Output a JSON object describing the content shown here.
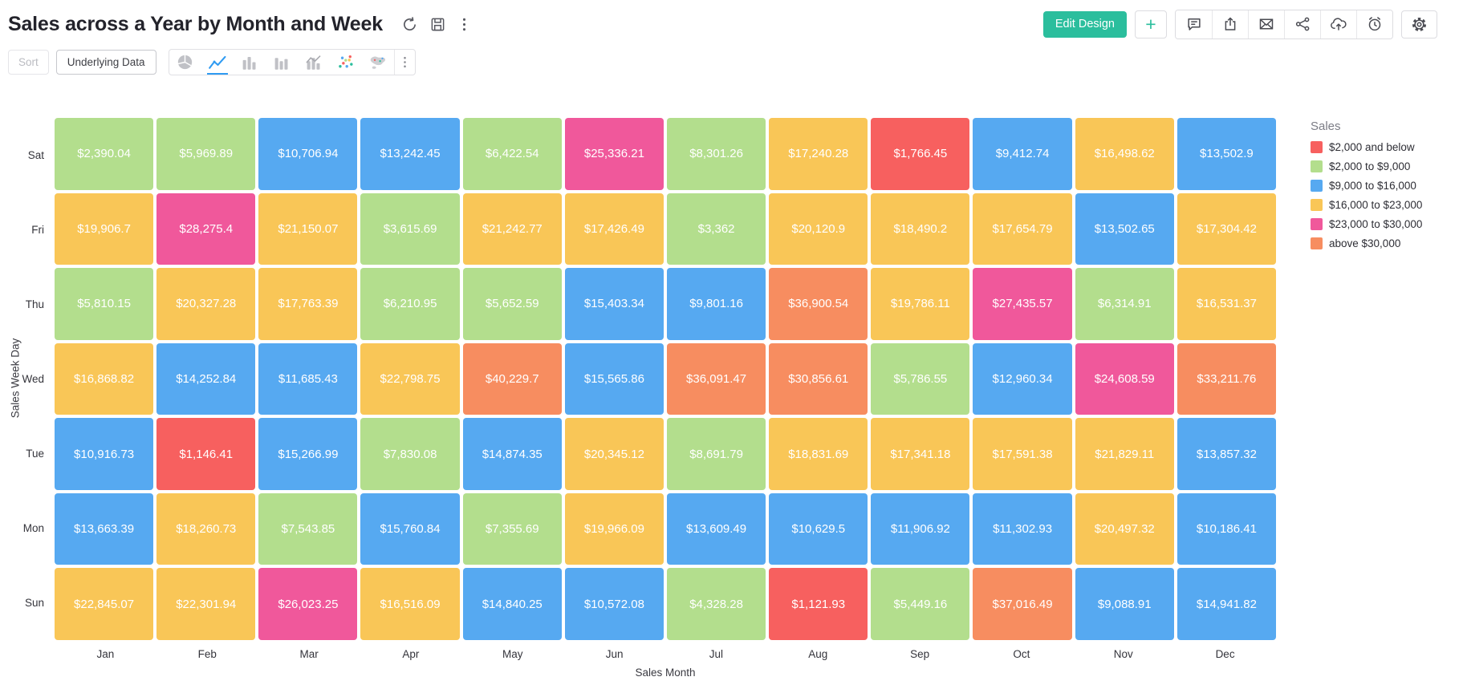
{
  "header": {
    "title": "Sales across a Year by Month and Week",
    "edit_design_label": "Edit Design",
    "add_label": "+"
  },
  "toolbar": {
    "sort_label": "Sort",
    "underlying_data_label": "Underlying Data"
  },
  "colors": {
    "accent_teal": "#2bbe9d",
    "active_chart_icon_blue": "#2f9bf2"
  },
  "chart_data": {
    "type": "heatmap",
    "title": "Sales across a Year by Month and Week",
    "xlabel": "Sales Month",
    "ylabel": "Sales Week Day",
    "columns": [
      "Jan",
      "Feb",
      "Mar",
      "Apr",
      "May",
      "Jun",
      "Jul",
      "Aug",
      "Sep",
      "Oct",
      "Nov",
      "Dec"
    ],
    "rows": [
      "Sat",
      "Fri",
      "Thu",
      "Wed",
      "Tue",
      "Mon",
      "Sun"
    ],
    "values": [
      [
        2390.04,
        5969.89,
        10706.94,
        13242.45,
        6422.54,
        25336.21,
        8301.26,
        17240.28,
        1766.45,
        9412.74,
        16498.62,
        13502.9
      ],
      [
        19906.7,
        28275.4,
        21150.07,
        3615.69,
        21242.77,
        17426.49,
        3362,
        20120.9,
        18490.2,
        17654.79,
        13502.65,
        17304.42
      ],
      [
        5810.15,
        20327.28,
        17763.39,
        6210.95,
        5652.59,
        15403.34,
        9801.16,
        36900.54,
        19786.11,
        27435.57,
        6314.91,
        16531.37
      ],
      [
        16868.82,
        14252.84,
        11685.43,
        22798.75,
        40229.7,
        15565.86,
        36091.47,
        30856.61,
        5786.55,
        12960.34,
        24608.59,
        33211.76
      ],
      [
        10916.73,
        1146.41,
        15266.99,
        7830.08,
        14874.35,
        20345.12,
        8691.79,
        18831.69,
        17341.18,
        17591.38,
        21829.11,
        13857.32
      ],
      [
        13663.39,
        18260.73,
        7543.85,
        15760.84,
        7355.69,
        19966.09,
        13609.49,
        10629.5,
        11906.92,
        11302.93,
        20497.32,
        10186.41
      ],
      [
        22845.07,
        22301.94,
        26023.25,
        16516.09,
        14840.25,
        10572.08,
        4328.28,
        1121.93,
        5449.16,
        37016.49,
        9088.91,
        14941.82
      ]
    ],
    "labels": [
      [
        "$2,390.04",
        "$5,969.89",
        "$10,706.94",
        "$13,242.45",
        "$6,422.54",
        "$25,336.21",
        "$8,301.26",
        "$17,240.28",
        "$1,766.45",
        "$9,412.74",
        "$16,498.62",
        "$13,502.9"
      ],
      [
        "$19,906.7",
        "$28,275.4",
        "$21,150.07",
        "$3,615.69",
        "$21,242.77",
        "$17,426.49",
        "$3,362",
        "$20,120.9",
        "$18,490.2",
        "$17,654.79",
        "$13,502.65",
        "$17,304.42"
      ],
      [
        "$5,810.15",
        "$20,327.28",
        "$17,763.39",
        "$6,210.95",
        "$5,652.59",
        "$15,403.34",
        "$9,801.16",
        "$36,900.54",
        "$19,786.11",
        "$27,435.57",
        "$6,314.91",
        "$16,531.37"
      ],
      [
        "$16,868.82",
        "$14,252.84",
        "$11,685.43",
        "$22,798.75",
        "$40,229.7",
        "$15,565.86",
        "$36,091.47",
        "$30,856.61",
        "$5,786.55",
        "$12,960.34",
        "$24,608.59",
        "$33,211.76"
      ],
      [
        "$10,916.73",
        "$1,146.41",
        "$15,266.99",
        "$7,830.08",
        "$14,874.35",
        "$20,345.12",
        "$8,691.79",
        "$18,831.69",
        "$17,341.18",
        "$17,591.38",
        "$21,829.11",
        "$13,857.32"
      ],
      [
        "$13,663.39",
        "$18,260.73",
        "$7,543.85",
        "$15,760.84",
        "$7,355.69",
        "$19,966.09",
        "$13,609.49",
        "$10,629.5",
        "$11,906.92",
        "$11,302.93",
        "$20,497.32",
        "$10,186.41"
      ],
      [
        "$22,845.07",
        "$22,301.94",
        "$26,023.25",
        "$16,516.09",
        "$14,840.25",
        "$10,572.08",
        "$4,328.28",
        "$1,121.93",
        "$5,449.16",
        "$37,016.49",
        "$9,088.91",
        "$14,941.82"
      ]
    ],
    "legend": {
      "title": "Sales",
      "position": "right",
      "items": [
        {
          "label": "$2,000 and below",
          "color": "#f7605f",
          "max": 2000
        },
        {
          "label": "$2,000 to $9,000",
          "color": "#b3de8d",
          "max": 9000
        },
        {
          "label": "$9,000 to $16,000",
          "color": "#56a9f1",
          "max": 16000
        },
        {
          "label": "$16,000 to $23,000",
          "color": "#f9c657",
          "max": 23000
        },
        {
          "label": "$23,000 to $30,000",
          "color": "#f0589b",
          "max": 30000
        },
        {
          "label": "above $30,000",
          "color": "#f78d60",
          "max": null
        }
      ]
    }
  }
}
